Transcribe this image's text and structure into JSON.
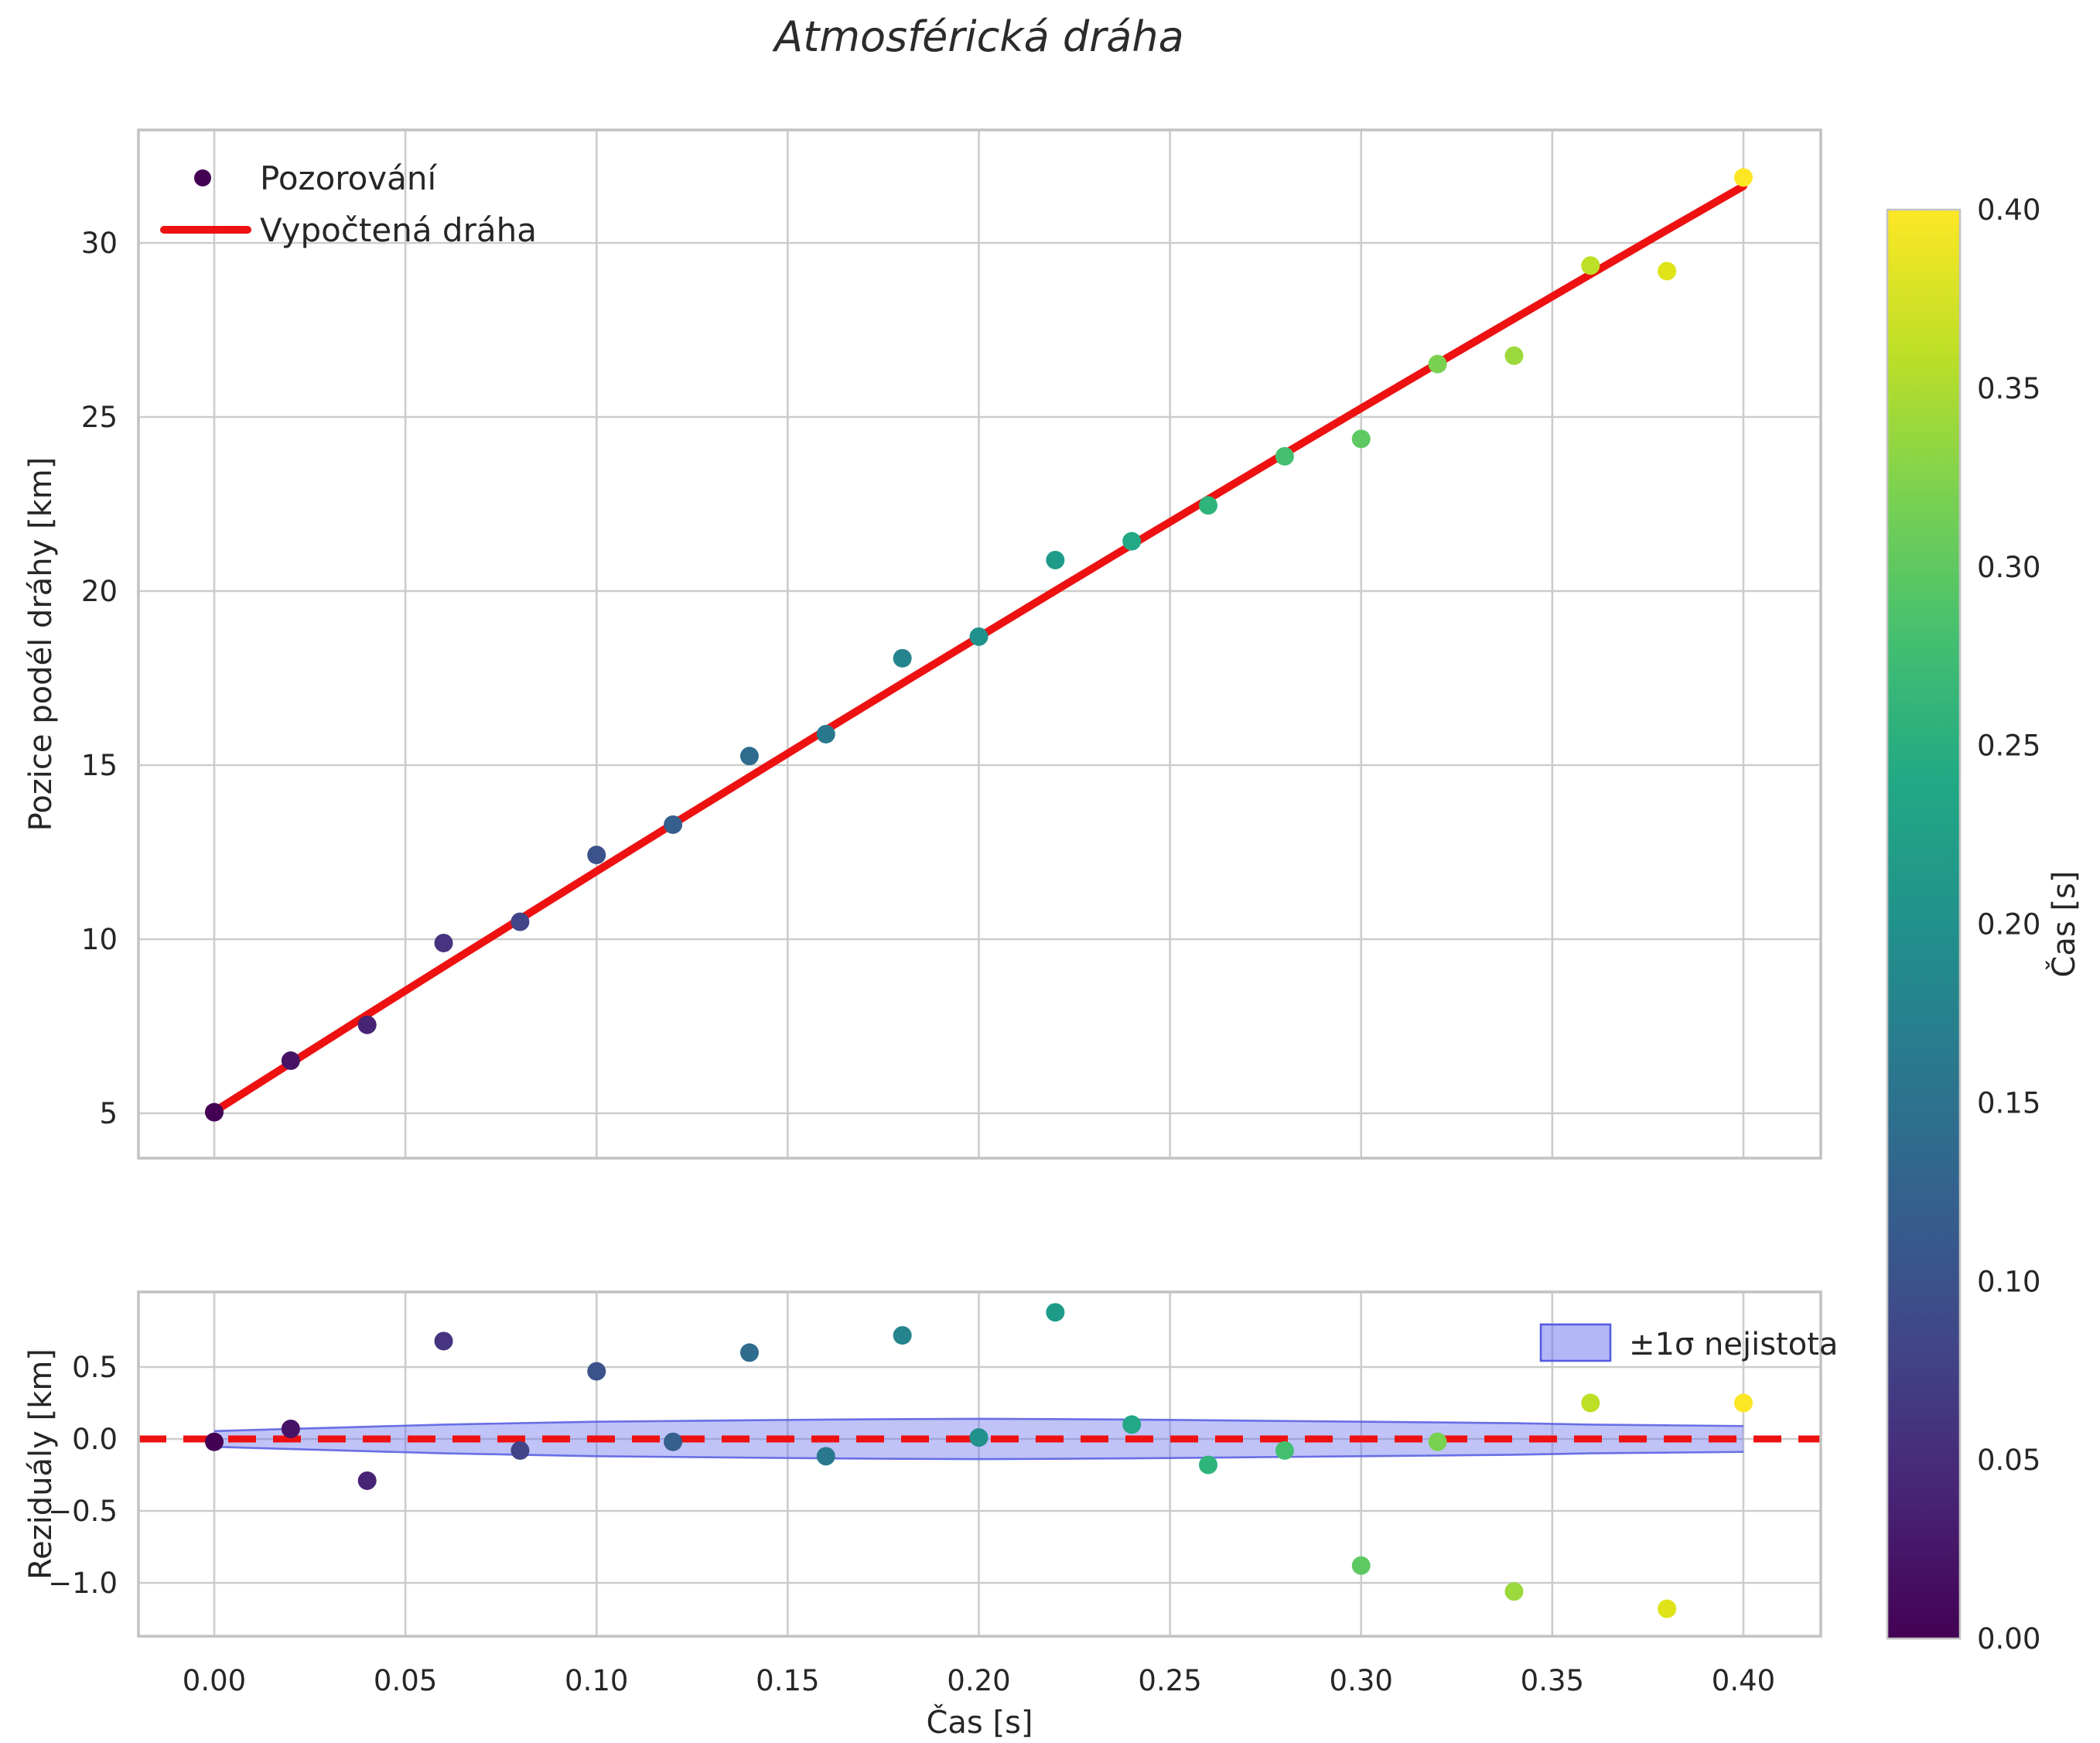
{
  "title": "Atmosférická dráha",
  "colors": {
    "fit_line": "#ed1111",
    "zero_line": "#ed1111",
    "band_fill": "#6a70ee",
    "band_edge": "#555ce0",
    "grid": "#cccccc",
    "spine": "#c3c3c3",
    "text": "#262626",
    "legend_marker": "#440154"
  },
  "legend_main": {
    "observations_label": "Pozorování",
    "fit_label": "Vypočtená dráha"
  },
  "legend_residual": {
    "band_label": "±1σ nejistota"
  },
  "colorbar": {
    "label": "Čas [s]",
    "min": 0.0,
    "max": 0.4,
    "ticks": [
      0.0,
      0.05,
      0.1,
      0.15,
      0.2,
      0.25,
      0.3,
      0.35,
      0.4
    ],
    "tick_labels": [
      "0.00",
      "0.05",
      "0.10",
      "0.15",
      "0.20",
      "0.25",
      "0.30",
      "0.35",
      "0.40"
    ],
    "gradient_bottom_to_top": [
      "#440154",
      "#482475",
      "#414487",
      "#355f8d",
      "#2a788e",
      "#21918c",
      "#22a884",
      "#44bf70",
      "#7ad151",
      "#bddf26",
      "#fde725"
    ]
  },
  "chart_data": [
    {
      "type": "scatter",
      "title": "Atmosférická dráha",
      "xlabel": "Čas [s]",
      "ylabel": "Pozice podél dráhy [km]",
      "xlim": [
        -0.02,
        0.42
      ],
      "ylim": [
        3.7,
        33.3
      ],
      "grid": true,
      "legend_position": "upper left",
      "xticks": [
        0.0,
        0.05,
        0.1,
        0.15,
        0.2,
        0.25,
        0.3,
        0.35,
        0.4
      ],
      "xtick_labels": [
        "0.00",
        "0.05",
        "0.10",
        "0.15",
        "0.20",
        "0.25",
        "0.30",
        "0.35",
        "0.40"
      ],
      "yticks": [
        5,
        10,
        15,
        20,
        25,
        30
      ],
      "ytick_labels": [
        "5",
        "10",
        "15",
        "20",
        "25",
        "30"
      ],
      "x": [
        0.0,
        0.02,
        0.04,
        0.06,
        0.08,
        0.1,
        0.12,
        0.14,
        0.16,
        0.18,
        0.2,
        0.22,
        0.24,
        0.26,
        0.28,
        0.3,
        0.32,
        0.34,
        0.36,
        0.38,
        0.4
      ],
      "series": [
        {
          "name": "Pozorování",
          "type": "scatter",
          "colormap": "viridis",
          "color_by": "Čas [s]",
          "values": [
            5.03,
            6.51,
            7.54,
            9.89,
            10.5,
            12.42,
            13.29,
            15.26,
            15.89,
            18.07,
            18.69,
            20.89,
            21.43,
            22.46,
            23.87,
            24.37,
            26.52,
            26.76,
            29.35,
            29.19,
            31.88
          ],
          "point_colors": [
            "#440154",
            "#471365",
            "#482475",
            "#463480",
            "#414487",
            "#3b528b",
            "#355f8d",
            "#2f6c8e",
            "#2a788e",
            "#25848e",
            "#21918c",
            "#1e9c89",
            "#22a884",
            "#2fb47c",
            "#44bf70",
            "#5ec962",
            "#7ad151",
            "#9bd93c",
            "#bddf26",
            "#dfe318",
            "#fde725"
          ]
        },
        {
          "name": "Vypočtená dráha",
          "type": "line",
          "color": "#ed1111",
          "values": [
            5.05,
            6.44,
            7.83,
            9.21,
            10.58,
            11.95,
            13.31,
            14.66,
            16.01,
            17.35,
            18.68,
            20.01,
            21.33,
            22.64,
            23.95,
            25.25,
            26.54,
            27.82,
            29.1,
            30.37,
            31.63
          ]
        }
      ]
    },
    {
      "type": "scatter",
      "xlabel": "Čas [s]",
      "ylabel": "Reziduály [km]",
      "xlim": [
        -0.02,
        0.42
      ],
      "ylim": [
        -1.37,
        1.02
      ],
      "grid": true,
      "xticks": [
        0.0,
        0.05,
        0.1,
        0.15,
        0.2,
        0.25,
        0.3,
        0.35,
        0.4
      ],
      "xtick_labels": [
        "0.00",
        "0.05",
        "0.10",
        "0.15",
        "0.20",
        "0.25",
        "0.30",
        "0.35",
        "0.40"
      ],
      "yticks": [
        0.5,
        0.0,
        -0.5,
        -1.0
      ],
      "ytick_labels": [
        "0.5",
        "0.0",
        "−0.5",
        "−1.0"
      ],
      "x": [
        0.0,
        0.02,
        0.04,
        0.06,
        0.08,
        0.1,
        0.12,
        0.14,
        0.16,
        0.18,
        0.2,
        0.22,
        0.24,
        0.26,
        0.28,
        0.3,
        0.32,
        0.34,
        0.36,
        0.38,
        0.4
      ],
      "series": [
        {
          "name": "Reziduály",
          "type": "scatter",
          "values": [
            -0.02,
            0.07,
            -0.29,
            0.68,
            -0.08,
            0.47,
            -0.02,
            0.6,
            -0.12,
            0.72,
            0.01,
            0.88,
            0.1,
            -0.18,
            -0.08,
            -0.88,
            -0.02,
            -1.06,
            0.25,
            -1.18,
            0.25
          ],
          "point_colors": [
            "#440154",
            "#471365",
            "#482475",
            "#463480",
            "#414487",
            "#3b528b",
            "#355f8d",
            "#2f6c8e",
            "#2a788e",
            "#25848e",
            "#21918c",
            "#1e9c89",
            "#22a884",
            "#2fb47c",
            "#44bf70",
            "#5ec962",
            "#7ad151",
            "#9bd93c",
            "#bddf26",
            "#dfe318",
            "#fde725"
          ]
        },
        {
          "name": "zero-line",
          "type": "hline",
          "y": 0.0,
          "style": "dashed",
          "color": "#ed1111"
        }
      ],
      "band": {
        "label": "±1σ nejistota",
        "center": 0.0,
        "halfwidth": [
          0.055,
          0.07,
          0.085,
          0.1,
          0.11,
          0.12,
          0.125,
          0.13,
          0.135,
          0.138,
          0.14,
          0.138,
          0.135,
          0.13,
          0.125,
          0.12,
          0.115,
          0.11,
          0.1,
          0.095,
          0.09
        ]
      }
    }
  ]
}
